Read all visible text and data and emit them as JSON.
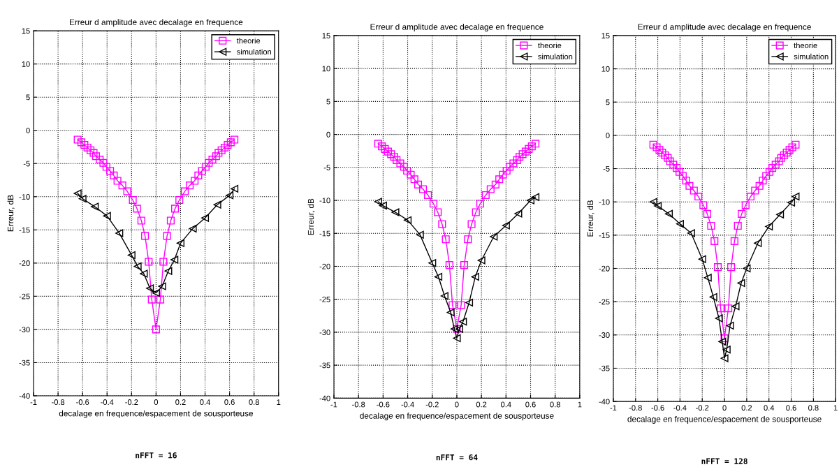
{
  "chart_data": [
    {
      "type": "line",
      "title": "Erreur d amplitude avec decalage en frequence",
      "xlabel": "decalage en frequence/espacement de sousporteuse",
      "ylabel": "Erreur, dB",
      "xlim": [
        -1,
        1
      ],
      "ylim": [
        -40,
        15
      ],
      "xticks": [
        -1,
        -0.8,
        -0.6,
        -0.4,
        -0.2,
        0,
        0.2,
        0.4,
        0.6,
        0.8,
        1
      ],
      "yticks": [
        -40,
        -35,
        -30,
        -25,
        -20,
        -15,
        -10,
        -5,
        0,
        5,
        10,
        15
      ],
      "grid": true,
      "legend": "top right",
      "annotations": [
        "nFFT = 16"
      ],
      "series": [
        {
          "name": "theorie",
          "color": "#ff00ff",
          "marker": "square",
          "x": [
            -0.64,
            -0.61,
            -0.585,
            -0.56,
            -0.535,
            -0.51,
            -0.49,
            -0.46,
            -0.43,
            -0.405,
            -0.375,
            -0.345,
            -0.315,
            -0.275,
            -0.235,
            -0.19,
            -0.155,
            -0.12,
            -0.09,
            -0.06,
            -0.035,
            0,
            0.035,
            0.06,
            0.09,
            0.12,
            0.155,
            0.19,
            0.235,
            0.275,
            0.315,
            0.345,
            0.375,
            0.405,
            0.43,
            0.46,
            0.49,
            0.51,
            0.535,
            0.56,
            0.585,
            0.61,
            0.64
          ],
          "values": [
            -1.4,
            -1.8,
            -2.2,
            -2.6,
            -3.0,
            -3.4,
            -3.9,
            -4.4,
            -4.9,
            -5.5,
            -6.1,
            -6.8,
            -7.6,
            -8.3,
            -9.2,
            -10.5,
            -11.8,
            -13.6,
            -15.9,
            -19.8,
            -25.5,
            -30,
            -25.5,
            -19.8,
            -15.9,
            -13.6,
            -11.8,
            -10.5,
            -9.2,
            -8.3,
            -7.6,
            -6.8,
            -6.1,
            -5.5,
            -4.9,
            -4.4,
            -3.9,
            -3.4,
            -3.0,
            -2.6,
            -2.2,
            -1.8,
            -1.4
          ]
        },
        {
          "name": "simulation",
          "color": "#000000",
          "marker": "triangle_left",
          "x": [
            -0.64,
            -0.6,
            -0.5,
            -0.4,
            -0.3,
            -0.2,
            -0.15,
            -0.1,
            -0.05,
            0,
            0.05,
            0.1,
            0.15,
            0.2,
            0.3,
            0.4,
            0.5,
            0.6,
            0.64
          ],
          "values": [
            -9.5,
            -10.3,
            -11.5,
            -12.9,
            -15.5,
            -18.8,
            -20.5,
            -21.6,
            -23.8,
            -24.5,
            -23.5,
            -21.2,
            -19.5,
            -17,
            -14.8,
            -13.2,
            -11.2,
            -9.8,
            -8.8
          ]
        }
      ]
    },
    {
      "type": "line",
      "title": "Erreur d amplitude avec decalage en frequence",
      "xlabel": "decalage en frequence/espacement de sousporteuse",
      "ylabel": "Erreur, dB",
      "xlim": [
        -1,
        1
      ],
      "ylim": [
        -40,
        15
      ],
      "xticks": [
        -1,
        -0.8,
        -0.6,
        -0.4,
        -0.2,
        0,
        0.2,
        0.4,
        0.6,
        0.8,
        1
      ],
      "yticks": [
        -40,
        -35,
        -30,
        -25,
        -20,
        -15,
        -10,
        -5,
        0,
        5,
        10,
        15
      ],
      "grid": true,
      "legend": "top right",
      "annotations": [
        "nFFT = 64"
      ],
      "series": [
        {
          "name": "theorie",
          "color": "#ff00ff",
          "marker": "square",
          "x": [
            -0.64,
            -0.61,
            -0.585,
            -0.56,
            -0.535,
            -0.51,
            -0.49,
            -0.46,
            -0.43,
            -0.405,
            -0.375,
            -0.345,
            -0.315,
            -0.275,
            -0.235,
            -0.19,
            -0.155,
            -0.12,
            -0.09,
            -0.06,
            -0.035,
            0,
            0.035,
            0.06,
            0.09,
            0.12,
            0.155,
            0.19,
            0.235,
            0.275,
            0.315,
            0.345,
            0.375,
            0.405,
            0.43,
            0.46,
            0.49,
            0.51,
            0.535,
            0.56,
            0.585,
            0.61,
            0.64
          ],
          "values": [
            -1.4,
            -1.8,
            -2.2,
            -2.6,
            -3.0,
            -3.4,
            -3.9,
            -4.4,
            -4.9,
            -5.5,
            -6.1,
            -6.8,
            -7.6,
            -8.3,
            -9.2,
            -10.5,
            -11.8,
            -13.6,
            -15.9,
            -19.8,
            -25.9,
            -29.5,
            -25.9,
            -19.8,
            -15.9,
            -13.6,
            -11.8,
            -10.5,
            -9.2,
            -8.3,
            -7.6,
            -6.8,
            -6.1,
            -5.5,
            -4.9,
            -4.4,
            -3.9,
            -3.4,
            -3.0,
            -2.6,
            -2.2,
            -1.8,
            -1.4
          ]
        },
        {
          "name": "simulation",
          "color": "#000000",
          "marker": "triangle_left",
          "x": [
            -0.64,
            -0.6,
            -0.5,
            -0.4,
            -0.3,
            -0.2,
            -0.15,
            -0.1,
            -0.05,
            -0.02,
            0,
            0.02,
            0.05,
            0.1,
            0.15,
            0.2,
            0.3,
            0.4,
            0.5,
            0.6,
            0.64
          ],
          "values": [
            -10.2,
            -10.8,
            -11.8,
            -13,
            -15.2,
            -19.5,
            -21.6,
            -24.5,
            -27,
            -29.5,
            -30.9,
            -29.5,
            -28.4,
            -25.5,
            -21.6,
            -19.1,
            -15.5,
            -13.8,
            -12,
            -10,
            -9.5
          ]
        }
      ]
    },
    {
      "type": "line",
      "title": "Erreur d amplitude avec decalage en frequence",
      "xlabel": "decalage en frequence/espacement de sousporteuse",
      "ylabel": "Erreur, dB",
      "xlim": [
        -1,
        1
      ],
      "ylim": [
        -40,
        15
      ],
      "xticks": [
        -1,
        -0.8,
        -0.6,
        -0.4,
        -0.2,
        0,
        0.2,
        0.4,
        0.6,
        0.8,
        1
      ],
      "yticks": [
        -40,
        -35,
        -30,
        -25,
        -20,
        -15,
        -10,
        -5,
        0,
        5,
        10,
        15
      ],
      "grid": true,
      "legend": "top right",
      "annotations": [
        "nFFT = 128"
      ],
      "series": [
        {
          "name": "theorie",
          "color": "#ff00ff",
          "marker": "square",
          "x": [
            -0.64,
            -0.61,
            -0.585,
            -0.56,
            -0.535,
            -0.51,
            -0.49,
            -0.46,
            -0.43,
            -0.405,
            -0.375,
            -0.345,
            -0.315,
            -0.275,
            -0.235,
            -0.19,
            -0.155,
            -0.12,
            -0.09,
            -0.06,
            -0.035,
            0,
            0.035,
            0.06,
            0.09,
            0.12,
            0.155,
            0.19,
            0.235,
            0.275,
            0.315,
            0.345,
            0.375,
            0.405,
            0.43,
            0.46,
            0.49,
            0.51,
            0.535,
            0.56,
            0.585,
            0.61,
            0.64
          ],
          "values": [
            -1.4,
            -1.8,
            -2.2,
            -2.6,
            -3.0,
            -3.4,
            -3.9,
            -4.4,
            -4.9,
            -5.5,
            -6.1,
            -6.8,
            -7.6,
            -8.3,
            -9.2,
            -10.5,
            -11.8,
            -13.6,
            -15.9,
            -19.8,
            -26,
            -30.5,
            -26,
            -19.8,
            -15.9,
            -13.6,
            -11.8,
            -10.5,
            -9.2,
            -8.3,
            -7.6,
            -6.8,
            -6.1,
            -5.5,
            -4.9,
            -4.4,
            -3.9,
            -3.4,
            -3.0,
            -2.6,
            -2.2,
            -1.8,
            -1.4
          ]
        },
        {
          "name": "simulation",
          "color": "#000000",
          "marker": "triangle_left",
          "x": [
            -0.64,
            -0.6,
            -0.5,
            -0.4,
            -0.3,
            -0.2,
            -0.15,
            -0.1,
            -0.05,
            -0.02,
            0,
            0.02,
            0.05,
            0.1,
            0.15,
            0.2,
            0.3,
            0.4,
            0.5,
            0.6,
            0.64
          ],
          "values": [
            -10,
            -10.6,
            -11.8,
            -13.3,
            -14.7,
            -18.6,
            -21.4,
            -24.3,
            -27.5,
            -31,
            -33.5,
            -32.2,
            -28.6,
            -25.7,
            -22.2,
            -20,
            -16.2,
            -13.7,
            -11.9,
            -10.1,
            -9.2
          ]
        }
      ]
    }
  ]
}
